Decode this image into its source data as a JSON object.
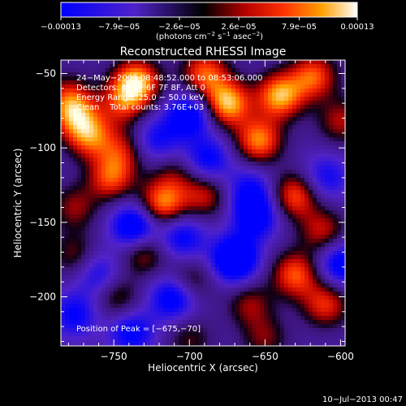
{
  "chart_data": {
    "type": "heatmap",
    "title": "Reconstructed RHESSI Image",
    "xlabel": "Heliocentric X (arcsec)",
    "ylabel": "Heliocentric Y (arcsec)",
    "xlim": [
      -785,
      -597
    ],
    "ylim": [
      -233,
      -41
    ],
    "xticks": [
      -750,
      -700,
      -650,
      -600
    ],
    "xtick_labels": [
      "−750",
      "−700",
      "−650",
      "−600"
    ],
    "yticks": [
      -50,
      -100,
      -150,
      -200
    ],
    "ytick_labels": [
      "−50",
      "−100",
      "−150",
      "−200"
    ],
    "colorbar": {
      "min": -0.00013,
      "max": 0.00013,
      "tick_values": [
        -0.00013,
        -7.9e-05,
        -2.6e-05,
        2.6e-05,
        7.9e-05,
        0.00013
      ],
      "tick_labels": [
        "−0.00013",
        "−7.9e−05",
        "−2.6e−05",
        "2.6e−05",
        "7.9e−05",
        "0.00013"
      ],
      "units_prefix": "(photons cm",
      "units_exp1": "−2",
      "units_mid": " s",
      "units_exp2": "−1",
      "units_mid2": " asec",
      "units_exp3": "−2",
      "units_suffix": ")"
    },
    "annotations": [
      "24−May−2005 08:48:52.000 to 08:53:06.000",
      "Detectors: 4F 5F 6F 7F 8F, Att 0",
      "Energy Range: 25.0 − 50.0 keV",
      "Clean    Total counts: 3.76E+03"
    ],
    "peak_label": "Position of Peak = [−675,−70]",
    "blobs": [
      {
        "x": -735,
        "y": -56,
        "v": 1.0
      },
      {
        "x": -744,
        "y": -70,
        "v": 0.55
      },
      {
        "x": -780,
        "y": -66,
        "v": 0.5
      },
      {
        "x": -766,
        "y": -92,
        "v": 0.75
      },
      {
        "x": -776,
        "y": -78,
        "v": 0.65
      },
      {
        "x": -744,
        "y": -102,
        "v": 0.5
      },
      {
        "x": -752,
        "y": -120,
        "v": 0.7
      },
      {
        "x": -776,
        "y": -140,
        "v": 0.45
      },
      {
        "x": -718,
        "y": -138,
        "v": 0.85
      },
      {
        "x": -690,
        "y": -132,
        "v": 0.55
      },
      {
        "x": -710,
        "y": -118,
        "v": 0.35
      },
      {
        "x": -730,
        "y": -170,
        "v": 0.55
      },
      {
        "x": -776,
        "y": -172,
        "v": 0.4
      },
      {
        "x": -748,
        "y": -200,
        "v": 0.45
      },
      {
        "x": -700,
        "y": -190,
        "v": 0.5
      },
      {
        "x": -690,
        "y": -50,
        "v": 0.75
      },
      {
        "x": -675,
        "y": -70,
        "v": 1.0
      },
      {
        "x": -654,
        "y": -95,
        "v": 0.85
      },
      {
        "x": -640,
        "y": -65,
        "v": 0.95
      },
      {
        "x": -618,
        "y": -52,
        "v": 0.75
      },
      {
        "x": -600,
        "y": -82,
        "v": 0.5
      },
      {
        "x": -630,
        "y": -132,
        "v": 0.75
      },
      {
        "x": -612,
        "y": -156,
        "v": 0.55
      },
      {
        "x": -630,
        "y": -185,
        "v": 0.75
      },
      {
        "x": -610,
        "y": -205,
        "v": 0.65
      },
      {
        "x": -660,
        "y": -205,
        "v": 0.45
      },
      {
        "x": -650,
        "y": -228,
        "v": 0.4
      },
      {
        "x": -700,
        "y": -228,
        "v": 0.35
      },
      {
        "x": -736,
        "y": -153,
        "v": -0.9
      },
      {
        "x": -710,
        "y": -200,
        "v": -0.8
      },
      {
        "x": -670,
        "y": -175,
        "v": -1.0
      },
      {
        "x": -656,
        "y": -146,
        "v": -0.7
      },
      {
        "x": -600,
        "y": -178,
        "v": -0.7
      },
      {
        "x": -700,
        "y": -78,
        "v": -0.75
      },
      {
        "x": -722,
        "y": -95,
        "v": -0.5
      },
      {
        "x": -688,
        "y": -108,
        "v": -0.6
      },
      {
        "x": -660,
        "y": -128,
        "v": -0.5
      },
      {
        "x": -705,
        "y": -160,
        "v": -0.6
      },
      {
        "x": -760,
        "y": -185,
        "v": -0.5
      },
      {
        "x": -776,
        "y": -212,
        "v": -0.55
      },
      {
        "x": -738,
        "y": -224,
        "v": -0.6
      },
      {
        "x": -610,
        "y": -120,
        "v": -0.5
      }
    ]
  },
  "footer": {
    "timestamp": "10−Jul−2013 00:47"
  }
}
